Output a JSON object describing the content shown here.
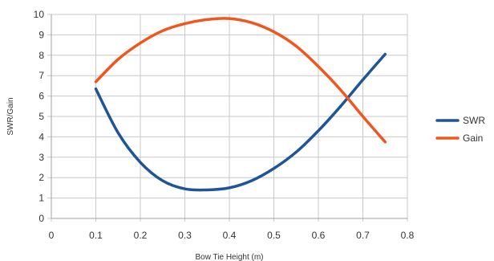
{
  "chart_data": {
    "type": "line",
    "xlabel": "Bow Tie Height (m)",
    "ylabel": "SWR/Gain",
    "xlim": [
      0,
      0.8
    ],
    "ylim": [
      0,
      10
    ],
    "x_ticks": [
      "0",
      "0.1",
      "0.2",
      "0.3",
      "0.4",
      "0.5",
      "0.6",
      "0.7",
      "0.8"
    ],
    "y_ticks": [
      "0",
      "1",
      "2",
      "3",
      "4",
      "5",
      "6",
      "7",
      "8",
      "9",
      "10"
    ],
    "grid": true,
    "legend_position": "right",
    "series": [
      {
        "name": "SWR",
        "color": "#1f5596",
        "x": [
          0.1,
          0.15,
          0.2,
          0.25,
          0.3,
          0.35,
          0.4,
          0.45,
          0.5,
          0.55,
          0.6,
          0.65,
          0.7,
          0.75
        ],
        "y": [
          6.35,
          4.2,
          2.75,
          1.85,
          1.45,
          1.4,
          1.5,
          1.85,
          2.45,
          3.25,
          4.3,
          5.5,
          6.8,
          8.05
        ]
      },
      {
        "name": "Gain",
        "color": "#f0561d",
        "x": [
          0.1,
          0.15,
          0.2,
          0.25,
          0.3,
          0.35,
          0.4,
          0.45,
          0.5,
          0.55,
          0.6,
          0.65,
          0.7,
          0.75
        ],
        "y": [
          6.7,
          7.8,
          8.6,
          9.2,
          9.55,
          9.75,
          9.8,
          9.6,
          9.15,
          8.45,
          7.45,
          6.3,
          5.0,
          3.75
        ]
      }
    ]
  }
}
